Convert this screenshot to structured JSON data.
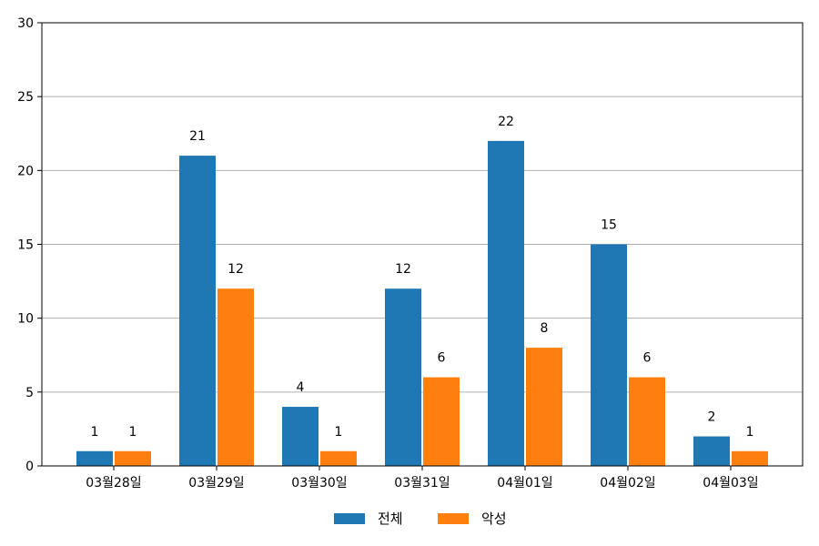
{
  "chart_data": {
    "type": "bar",
    "categories": [
      "03월28일",
      "03월29일",
      "03월30일",
      "03월31일",
      "04월01일",
      "04월02일",
      "04월03일"
    ],
    "series": [
      {
        "name": "전체",
        "color": "#1f77b4",
        "values": [
          1,
          21,
          4,
          12,
          22,
          15,
          2
        ]
      },
      {
        "name": "악성",
        "color": "#ff7f0e",
        "values": [
          1,
          12,
          1,
          6,
          8,
          6,
          1
        ]
      }
    ],
    "yticks": [
      0,
      5,
      10,
      15,
      20,
      25,
      30
    ],
    "ylim": [
      0,
      30
    ],
    "grid": true,
    "legend_position": "bottom-center"
  }
}
